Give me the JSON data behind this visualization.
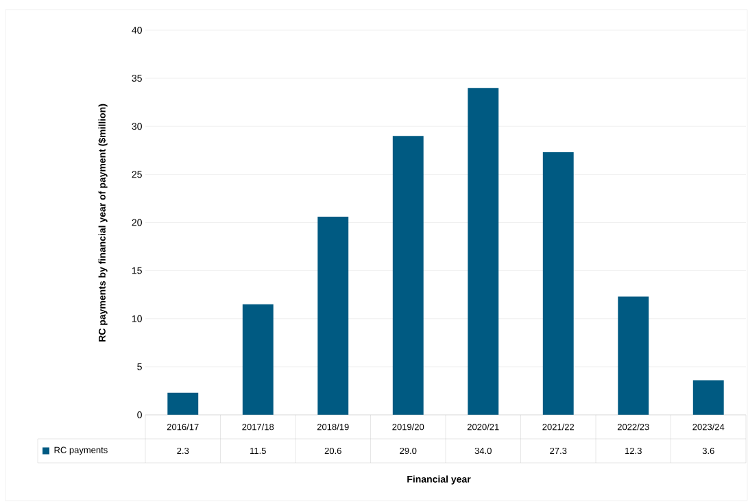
{
  "chart_data": {
    "type": "bar",
    "categories": [
      "2016/17",
      "2017/18",
      "2018/19",
      "2019/20",
      "2020/21",
      "2021/22",
      "2022/23",
      "2023/24"
    ],
    "series": [
      {
        "name": "RC payments",
        "color": "#005a82",
        "values": [
          2.3,
          11.5,
          20.6,
          29.0,
          34.0,
          27.3,
          12.3,
          3.6
        ],
        "value_labels": [
          "2.3",
          "11.5",
          "20.6",
          "29.0",
          "34.0",
          "27.3",
          "12.3",
          "3.6"
        ]
      }
    ],
    "xlabel": "Financial year",
    "ylabel": "RC payments by financial year of payment ($million)",
    "ylim": [
      0,
      40
    ],
    "yticks": [
      0,
      5,
      10,
      15,
      20,
      25,
      30,
      35,
      40
    ],
    "grid": "y",
    "legend": "bottom"
  }
}
